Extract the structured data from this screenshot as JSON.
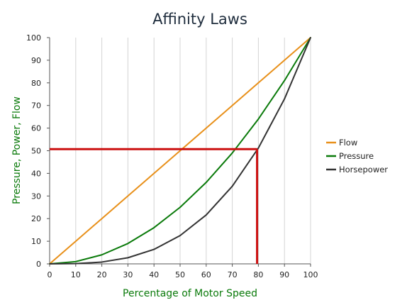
{
  "chart_data": {
    "type": "line",
    "title": "Affinity Laws",
    "xlabel": "Percentage of Motor Speed",
    "ylabel": "Pressure, Power, Flow",
    "xlim": [
      0,
      100
    ],
    "ylim": [
      0,
      100
    ],
    "x_ticks": [
      "0",
      "10",
      "20",
      "30",
      "40",
      "50",
      "60",
      "70",
      "80",
      "90",
      "100"
    ],
    "y_ticks": [
      "0",
      "10",
      "20",
      "30",
      "40",
      "50",
      "60",
      "70",
      "80",
      "90",
      "100"
    ],
    "grid": "vertical",
    "legend_position": "right",
    "x": [
      0,
      10,
      20,
      30,
      40,
      50,
      60,
      70,
      80,
      90,
      100
    ],
    "series": [
      {
        "name": "Flow",
        "color": "#e8901a",
        "values": [
          0,
          10,
          20,
          30,
          40,
          50,
          60,
          70,
          80,
          90,
          100
        ]
      },
      {
        "name": "Pressure",
        "color": "#0a7a0a",
        "values": [
          0,
          1,
          4,
          9,
          16,
          25,
          36,
          49,
          64,
          81,
          100
        ]
      },
      {
        "name": "Horsepower",
        "color": "#333333",
        "values": [
          0,
          0.1,
          0.8,
          2.7,
          6.4,
          12.5,
          21.6,
          34.3,
          51.2,
          72.9,
          100
        ]
      }
    ],
    "annotations": [
      {
        "type": "horizontal-line",
        "color": "#cc1111",
        "y": 50.7,
        "x_from": 0,
        "x_to": 79.5
      },
      {
        "type": "vertical-line",
        "color": "#cc1111",
        "x": 79.5,
        "y_from": 0,
        "y_to": 50.7
      }
    ],
    "axis_title_color": "#0a7a0a"
  }
}
